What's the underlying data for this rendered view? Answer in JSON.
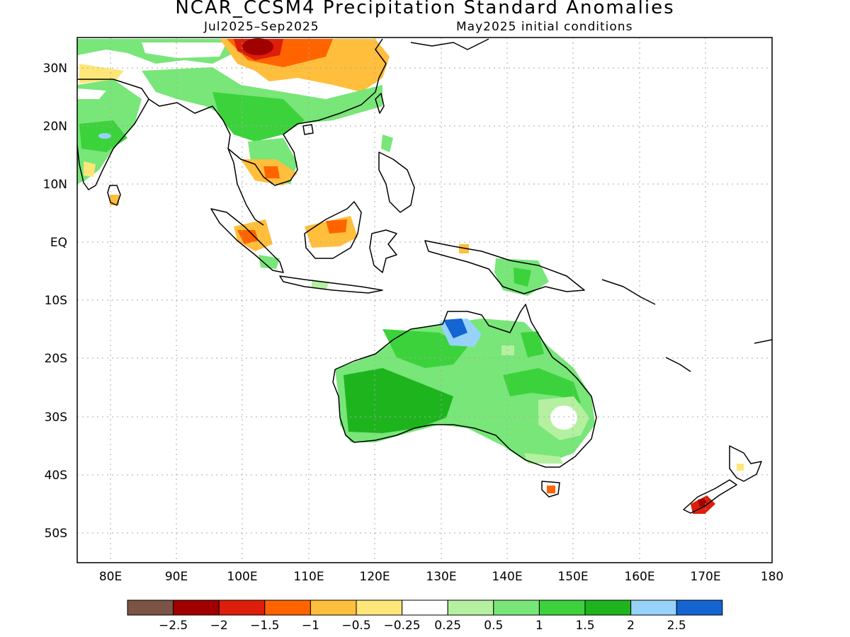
{
  "title": "NCAR_CCSM4 Precipitation Standard Anomalies",
  "subtitle_left": "Jul2025–Sep2025",
  "subtitle_right": "May2025 initial conditions",
  "lat_labels": [
    "30N",
    "20N",
    "10N",
    "EQ",
    "10S",
    "20S",
    "30S",
    "40S",
    "50S"
  ],
  "lon_labels": [
    "80E",
    "90E",
    "100E",
    "110E",
    "120E",
    "130E",
    "140E",
    "150E",
    "160E",
    "170E",
    "180"
  ],
  "colorbar": {
    "colors": [
      "#7b5446",
      "#a00000",
      "#dc1e0a",
      "#ff6400",
      "#ffbe3c",
      "#ffe678",
      "#ffffff",
      "#b4f0a0",
      "#78e678",
      "#3cd23c",
      "#1eb41e",
      "#96d2fa",
      "#1464d2"
    ],
    "labels": [
      "−2.5",
      "−2",
      "−1.5",
      "−1",
      "−0.5",
      "−0.25",
      "0.25",
      "0.5",
      "1",
      "1.5",
      "2",
      "2.5"
    ]
  }
}
